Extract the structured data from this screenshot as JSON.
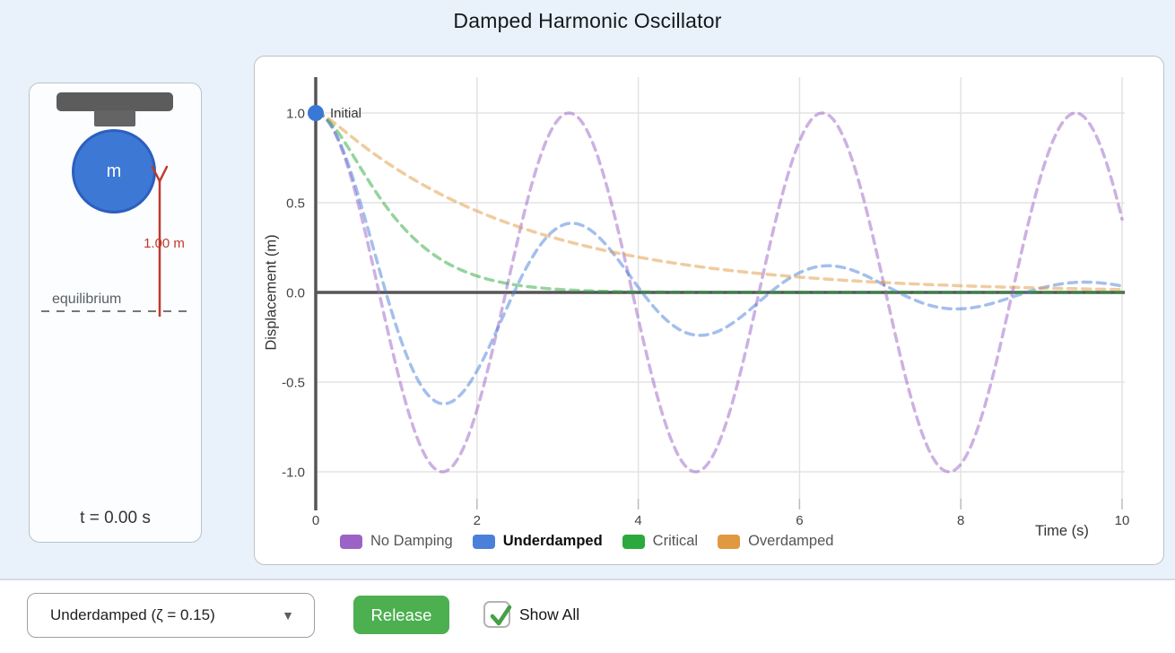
{
  "title": "Damped Harmonic Oscillator",
  "colors": {
    "background": "#e9f2fb",
    "panel_border": "#bcc3c9",
    "axis": "#555555",
    "grid": "#e3e3e3",
    "mass_blue": "#3d78d4",
    "ruler_red": "#c0392b",
    "button_green": "#4caf50",
    "check_green": "#43a047"
  },
  "apparatus": {
    "mass_label": "m",
    "ruler_label": "1.00 m",
    "equilibrium_label": "equilibrium",
    "time_readout": "t = 0.00 s"
  },
  "chart_data": {
    "type": "line",
    "xlabel": "Time (s)",
    "ylabel": "Displacement (m)",
    "xlim": [
      0,
      10
    ],
    "ylim": [
      -1.2,
      1.2
    ],
    "xticks": [
      0,
      2,
      4,
      6,
      8,
      10
    ],
    "yticks": [
      1.0,
      0.5,
      0.0,
      -0.5,
      -1.0
    ],
    "grid": true,
    "legend_position": "bottom",
    "model": "x(t) of a damped harmonic oscillator released from rest: x(0)=1 m, v(0)=0, natural frequency omega_n (rad/s), damping ratio zeta per series",
    "omega_n": 2,
    "sample_times": [
      0,
      1,
      2,
      3,
      4,
      5,
      6,
      7,
      8,
      9,
      10
    ],
    "series": [
      {
        "name": "No Damping",
        "zeta": 0,
        "color": "#9c63c6",
        "line_style": "dashed",
        "emphasis": false,
        "values_at_sample_times": [
          1,
          -0.416,
          -0.654,
          0.96,
          -0.146,
          -0.839,
          0.844,
          0.137,
          -0.958,
          0.66,
          0.408
        ]
      },
      {
        "name": "Underdamped",
        "zeta": 0.15,
        "color": "#4a80d9",
        "line_style": "dashed",
        "emphasis": true,
        "values_at_sample_times": [
          1,
          -0.19,
          -0.438,
          0.361,
          0.029,
          -0.215,
          0.11,
          0.053,
          -0.092,
          0.024,
          0.036
        ]
      },
      {
        "name": "Critical",
        "zeta": 1,
        "color": "#2ca93c",
        "line_style": "dashed",
        "emphasis": false,
        "values_at_sample_times": [
          1,
          0.406,
          0.092,
          0.017,
          0.003,
          0.001,
          0,
          0,
          0,
          0,
          0
        ]
      },
      {
        "name": "Overdamped",
        "zeta": 2.5,
        "color": "#e0993f",
        "line_style": "dashed",
        "emphasis": false,
        "values_at_sample_times": [
          1,
          0.689,
          0.454,
          0.299,
          0.197,
          0.13,
          0.085,
          0.056,
          0.037,
          0.024,
          0.016
        ]
      }
    ],
    "annotations": [
      {
        "label": "Initial",
        "t": 0,
        "value": 1.0,
        "marker_color": "#3a78d8"
      }
    ]
  },
  "controls": {
    "damping_select": {
      "value": "Underdamped (ζ = 0.15)",
      "caret_icon": "▼"
    },
    "release_button": {
      "label": "Release"
    },
    "show_all_checkbox": {
      "label": "Show All",
      "checked": true,
      "checkmark_icon": "✓"
    }
  }
}
